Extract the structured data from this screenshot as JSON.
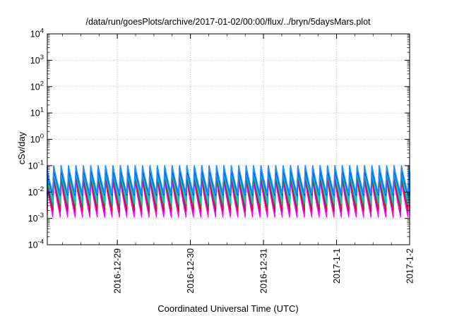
{
  "chart_data": {
    "type": "line",
    "title": "/data/run/goesPlots/archive/2017-01-02/00:00/flux/../bryn/5daysMars.plot",
    "xlabel": "Coordinated Universal Time (UTC)",
    "ylabel": "cSv/day",
    "yscale": "log",
    "ylim": [
      0.0001,
      10000
    ],
    "y_ticks": [
      {
        "value": 0.0001,
        "base": "10",
        "exp": "-4"
      },
      {
        "value": 0.001,
        "base": "10",
        "exp": "-3"
      },
      {
        "value": 0.01,
        "base": "10",
        "exp": "-2"
      },
      {
        "value": 0.1,
        "base": "10",
        "exp": "-1"
      },
      {
        "value": 1,
        "base": "10",
        "exp": "0"
      },
      {
        "value": 10,
        "base": "10",
        "exp": "1"
      },
      {
        "value": 100,
        "base": "10",
        "exp": "2"
      },
      {
        "value": 1000,
        "base": "10",
        "exp": "3"
      },
      {
        "value": 10000,
        "base": "10",
        "exp": "4"
      }
    ],
    "xlim": [
      "2016-12-28T01:00",
      "2017-01-02T00:00"
    ],
    "x_ticks": [
      {
        "value": "2016-12-29",
        "label": "2016-12-29"
      },
      {
        "value": "2016-12-30",
        "label": "2016-12-30"
      },
      {
        "value": "2016-12-31",
        "label": "2016-12-31"
      },
      {
        "value": "2017-01-01",
        "label": "2017-1-1"
      },
      {
        "value": "2017-01-02",
        "label": "2017-1-2"
      }
    ],
    "grid": true,
    "legend": "none",
    "sawtooth_period_hours": 2.43,
    "series": [
      {
        "color": "#ff00ff",
        "peak": 0.028,
        "trough": 0.0011
      },
      {
        "color": "#ff00ff",
        "peak": 0.032,
        "trough": 0.0013
      },
      {
        "color": "#ff00ff",
        "peak": 0.036,
        "trough": 0.0016
      },
      {
        "color": "#8b1a1a",
        "peak": 0.04,
        "trough": 0.0019
      },
      {
        "color": "#ff0000",
        "peak": 0.045,
        "trough": 0.0022
      },
      {
        "color": "#228b22",
        "peak": 0.05,
        "trough": 0.0027
      },
      {
        "color": "#00cdcd",
        "peak": 0.058,
        "trough": 0.0036
      },
      {
        "color": "#00cdcd",
        "peak": 0.065,
        "trough": 0.0047
      },
      {
        "color": "#1e90ff",
        "peak": 0.075,
        "trough": 0.0065
      },
      {
        "color": "#0000cd",
        "peak": 0.085,
        "trough": 0.008
      },
      {
        "color": "#1e90ff",
        "peak": 0.1,
        "trough": 0.0085
      }
    ]
  }
}
